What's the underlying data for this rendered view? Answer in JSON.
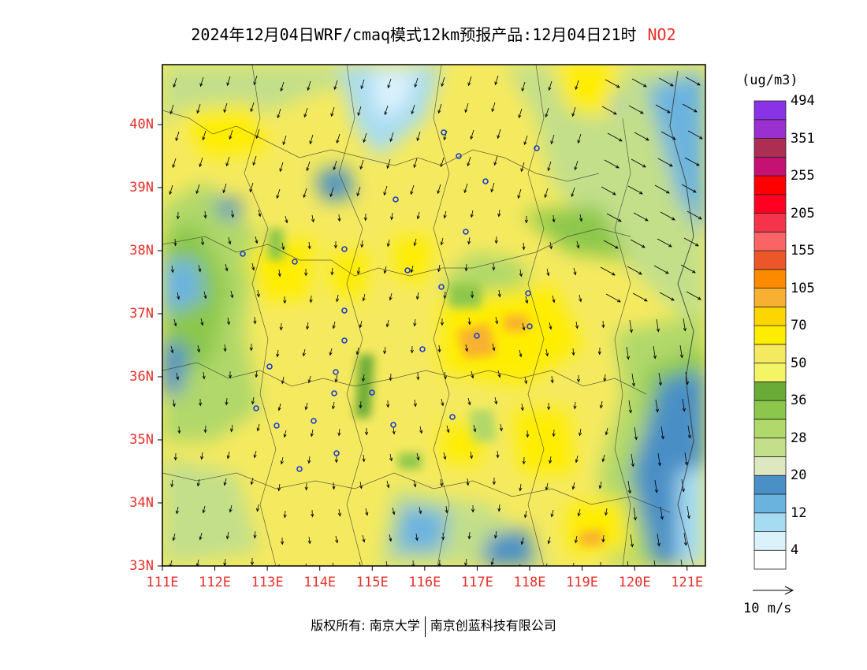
{
  "title": {
    "main": "2024年12月04日WRF/cmaq模式12km预报产品:12月04日21时",
    "species": "NO2"
  },
  "colors": {
    "axis_label": "#e8302a",
    "species": "#e8302a"
  },
  "map": {
    "lat_ticks": [
      "33N",
      "34N",
      "35N",
      "36N",
      "37N",
      "38N",
      "39N",
      "40N"
    ],
    "lon_ticks": [
      "111E",
      "112E",
      "113E",
      "114E",
      "115E",
      "116E",
      "117E",
      "118E",
      "119E",
      "120E",
      "121E"
    ],
    "lat_range": [
      33,
      40.95
    ],
    "lon_range": [
      111,
      121.35
    ]
  },
  "colorbar": {
    "unit": "(ug/m3)",
    "colors": [
      "#ffffff",
      "#dcf2fb",
      "#a6dcf2",
      "#6ab3df",
      "#4a8fc6",
      "#dde8c0",
      "#c3df8a",
      "#b0d86a",
      "#8cc74c",
      "#6aab38",
      "#f3f566",
      "#f5ea5f",
      "#ffed00",
      "#ffd500",
      "#f8b032",
      "#fb8a00",
      "#ec5629",
      "#fb6464",
      "#f5334b",
      "#ff0022",
      "#ff0000",
      "#c51272",
      "#ac2e53",
      "#9a30d0",
      "#8a32e6"
    ],
    "labels": [
      "4",
      "12",
      "20",
      "28",
      "36",
      "50",
      "70",
      "105",
      "155",
      "205",
      "255",
      "351",
      "494"
    ]
  },
  "wind_reference": {
    "label": "10 m/s"
  },
  "footer": {
    "copyright": "版权所有: 南京大学",
    "company": "南京创蓝科技有限公司"
  }
}
